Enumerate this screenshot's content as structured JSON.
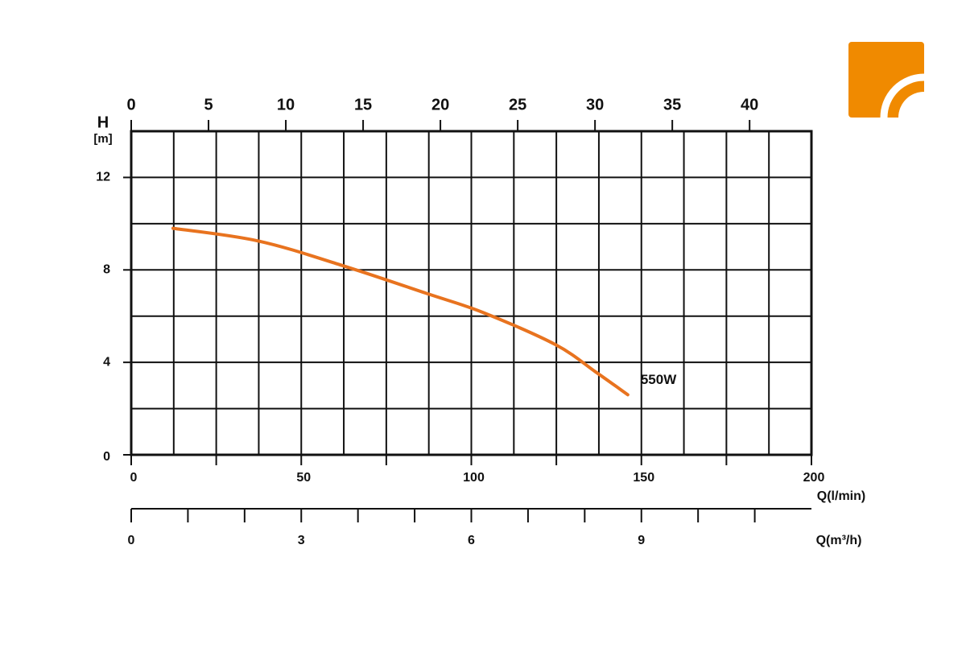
{
  "chart_data": {
    "type": "line",
    "y_label": "H",
    "y_unit_label": "[m]",
    "x_label": "Q(l/min)",
    "x3_label": "Q(m³/h)",
    "series": [
      {
        "name": "550W",
        "color": "#e8731f",
        "x": [
          12.3,
          37.4,
          62.5,
          87.3,
          103.4,
          124.7,
          136.6,
          146
        ],
        "values": [
          9.8,
          9.25,
          8.17,
          6.96,
          6.16,
          4.77,
          3.58,
          2.6
        ]
      }
    ],
    "xlim": [
      0,
      200
    ],
    "xticks": [
      0,
      50,
      100,
      150,
      200
    ],
    "xminor_ticks": [
      25,
      75,
      125,
      175
    ],
    "xgrid": [
      12.5,
      25,
      37.5,
      50,
      62.5,
      75,
      87.5,
      100,
      112.5,
      125,
      137.5,
      150,
      162.5,
      175,
      187.5
    ],
    "ylim": [
      0,
      14
    ],
    "yticks": [
      0,
      4,
      8,
      12
    ],
    "ygrid": [
      2,
      4,
      6,
      8,
      10,
      12
    ],
    "x2lim": [
      0,
      44
    ],
    "x2ticks": [
      0,
      5,
      10,
      15,
      20,
      25,
      30,
      35,
      40
    ],
    "x3lim": [
      0,
      12
    ],
    "x3ticks": [
      0,
      3,
      6,
      9
    ],
    "x3minor_ticks": [
      1,
      2,
      4,
      5,
      7,
      8,
      10,
      11
    ],
    "grid": true
  }
}
